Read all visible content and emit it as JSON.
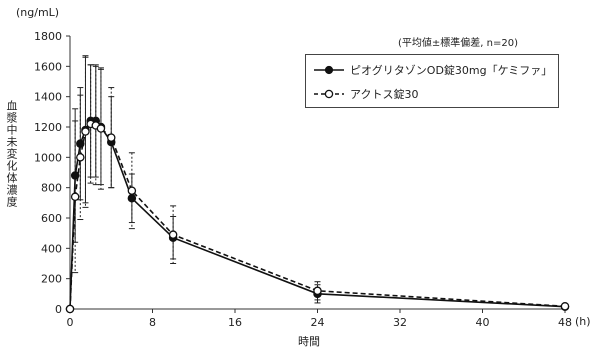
{
  "chart_data": {
    "type": "line",
    "unit_label": "(ng/mL)",
    "ylabel": "血漿中未変化体濃度",
    "xlabel": "時間",
    "x_unit": "(h)",
    "stat_note": "(平均値±標準偏差, n=20)",
    "ylim": [
      0,
      1800
    ],
    "xlim": [
      0,
      48
    ],
    "yticks": [
      0,
      200,
      400,
      600,
      800,
      1000,
      1200,
      1400,
      1600,
      1800
    ],
    "xticks": [
      0,
      8,
      16,
      24,
      32,
      40,
      48
    ],
    "grid": false,
    "legend_position": "top-right",
    "series": [
      {
        "name": "ピオグリタゾンOD錠30mg「ケミファ」",
        "marker": "filled-circle",
        "line": "solid",
        "x": [
          0,
          0.5,
          1,
          1.5,
          2,
          2.5,
          3,
          4,
          6,
          10,
          24,
          48
        ],
        "y": [
          0,
          880,
          1090,
          1180,
          1240,
          1240,
          1200,
          1100,
          730,
          470,
          100,
          15
        ],
        "sd": [
          0,
          440,
          370,
          480,
          370,
          370,
          380,
          300,
          160,
          140,
          60,
          10
        ]
      },
      {
        "name": "アクトス錠30",
        "marker": "open-circle",
        "line": "dashed",
        "x": [
          0,
          0.5,
          1,
          1.5,
          2,
          2.5,
          3,
          4,
          6,
          10,
          24,
          48
        ],
        "y": [
          0,
          740,
          1000,
          1170,
          1220,
          1210,
          1190,
          1130,
          780,
          490,
          120,
          18
        ],
        "sd": [
          0,
          500,
          410,
          500,
          390,
          390,
          400,
          330,
          250,
          190,
          60,
          10
        ]
      }
    ]
  }
}
